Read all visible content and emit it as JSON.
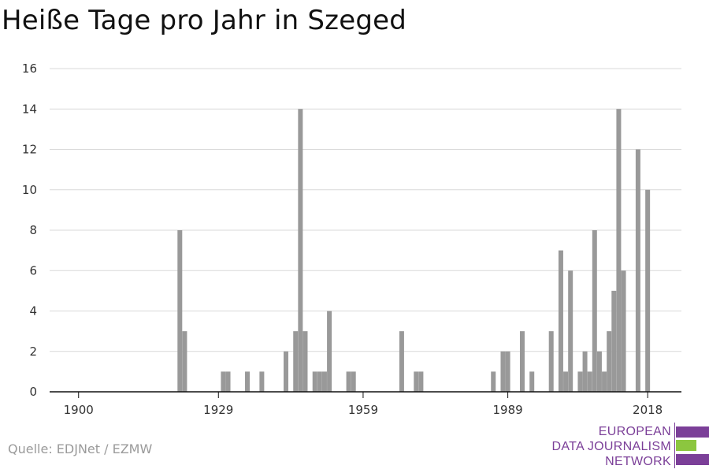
{
  "chart_data": {
    "type": "bar",
    "title": "Heiße Tage pro Jahr in Szeged",
    "xlabel": "",
    "ylabel": "",
    "xlim": [
      1894,
      2025
    ],
    "ylim": [
      0,
      16
    ],
    "x_ticks": [
      "1900",
      "1929",
      "1959",
      "1989",
      "2018"
    ],
    "y_ticks": [
      0,
      2,
      4,
      6,
      8,
      10,
      12,
      14,
      16
    ],
    "grid": true,
    "bar_color": "#999999",
    "x": [
      1921,
      1922,
      1930,
      1931,
      1935,
      1938,
      1943,
      1945,
      1946,
      1947,
      1949,
      1950,
      1951,
      1952,
      1956,
      1957,
      1967,
      1970,
      1971,
      1986,
      1988,
      1989,
      1992,
      1994,
      1998,
      2000,
      2001,
      2002,
      2004,
      2005,
      2006,
      2007,
      2008,
      2009,
      2010,
      2011,
      2012,
      2013,
      2014,
      2016,
      2018
    ],
    "values": [
      8,
      3,
      1,
      1,
      1,
      1,
      2,
      3,
      14,
      3,
      1,
      1,
      1,
      4,
      1,
      1,
      3,
      1,
      1,
      1,
      2,
      2,
      3,
      1,
      3,
      7,
      1,
      6,
      1,
      2,
      1,
      8,
      2,
      1,
      3,
      5,
      14,
      6,
      0,
      12,
      10
    ]
  },
  "source": "Quelle: EDJNet / EZMW",
  "logo": {
    "line1": "EUROPEAN",
    "line2": "DATA JOURNALISM",
    "line3": "NETWORK",
    "colors": {
      "purple": "#7b3f98",
      "green": "#8cc63f"
    }
  }
}
